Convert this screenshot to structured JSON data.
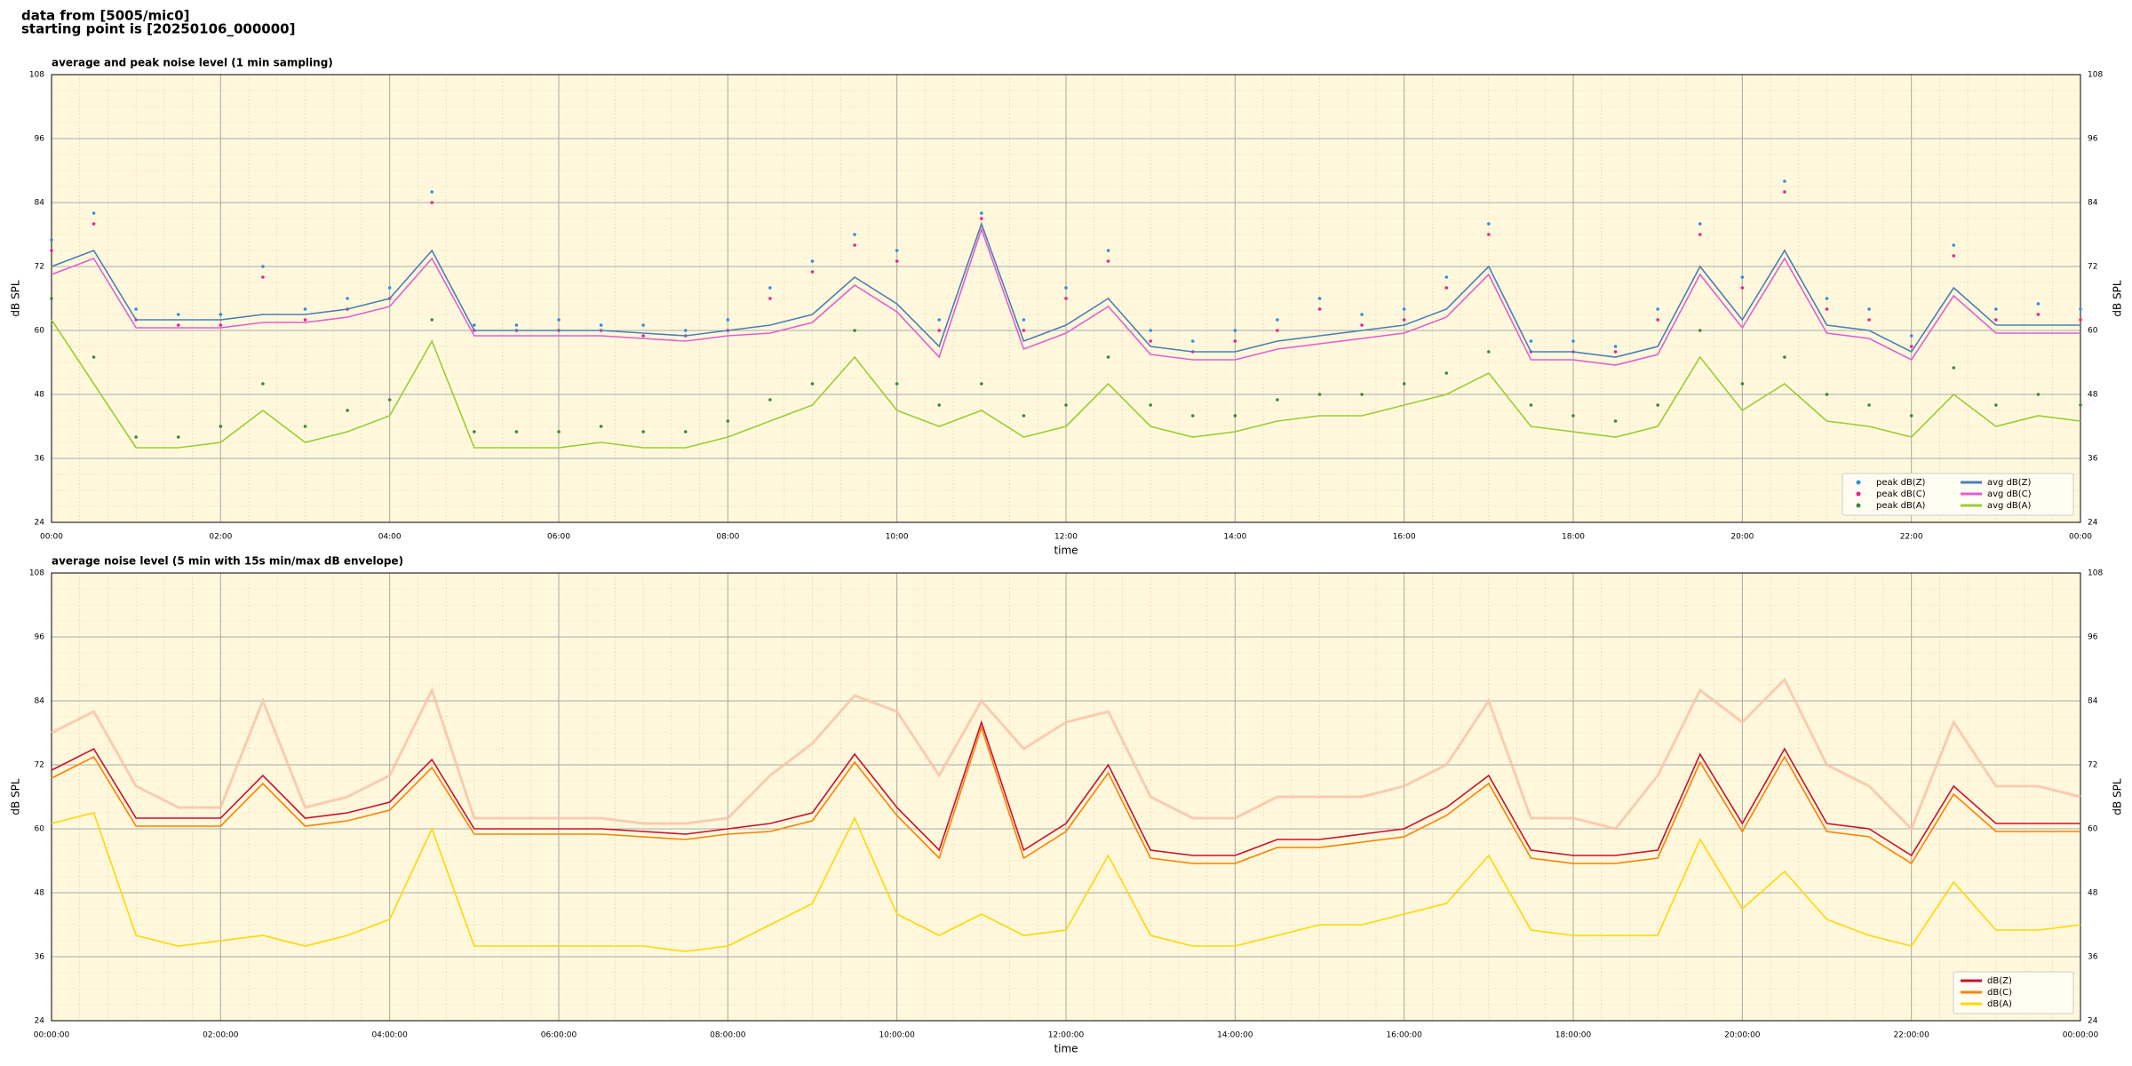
{
  "header": {
    "line1": "data from [5005/mic0]",
    "line2": "starting point is [20250106_000000]"
  },
  "chart_data": [
    {
      "type": "line",
      "title": "average and peak noise level (1 min sampling)",
      "xlabel": "time",
      "ylabel": "dB SPL",
      "x": [
        0,
        0.5,
        1,
        1.5,
        2,
        2.5,
        3,
        3.5,
        4,
        4.5,
        5,
        5.5,
        6,
        6.5,
        7,
        7.5,
        8,
        8.5,
        9,
        9.5,
        10,
        10.5,
        11,
        11.5,
        12,
        12.5,
        13,
        13.5,
        14,
        14.5,
        15,
        15.5,
        16,
        16.5,
        17,
        17.5,
        18,
        18.5,
        19,
        19.5,
        20,
        20.5,
        21,
        21.5,
        22,
        22.5,
        23,
        23.5,
        24
      ],
      "xlim": [
        0,
        24
      ],
      "xticks": [
        {
          "value": 0,
          "label": "00:00"
        },
        {
          "value": 2,
          "label": "02:00"
        },
        {
          "value": 4,
          "label": "04:00"
        },
        {
          "value": 6,
          "label": "06:00"
        },
        {
          "value": 8,
          "label": "08:00"
        },
        {
          "value": 10,
          "label": "10:00"
        },
        {
          "value": 12,
          "label": "12:00"
        },
        {
          "value": 14,
          "label": "14:00"
        },
        {
          "value": 16,
          "label": "16:00"
        },
        {
          "value": 18,
          "label": "18:00"
        },
        {
          "value": 20,
          "label": "20:00"
        },
        {
          "value": 22,
          "label": "22:00"
        },
        {
          "value": 24,
          "label": "00:00"
        }
      ],
      "ylim": [
        24,
        108
      ],
      "yticks": [
        24,
        36,
        48,
        60,
        72,
        84,
        96,
        108
      ],
      "grid": true,
      "legend": "lower right",
      "legend_columns": 2,
      "series": [
        {
          "name": "peak dB(Z)",
          "style": "dots",
          "color": "#2f8fe0",
          "values": [
            77,
            82,
            64,
            63,
            63,
            72,
            64,
            66,
            68,
            86,
            61,
            61,
            62,
            61,
            61,
            60,
            62,
            68,
            73,
            78,
            75,
            62,
            82,
            62,
            68,
            75,
            60,
            58,
            60,
            62,
            66,
            63,
            64,
            70,
            80,
            58,
            58,
            57,
            64,
            80,
            70,
            88,
            66,
            64,
            59,
            76,
            64,
            65,
            64
          ]
        },
        {
          "name": "peak dB(C)",
          "style": "dots",
          "color": "#f0208c",
          "values": [
            75,
            80,
            62,
            61,
            61,
            70,
            62,
            64,
            66,
            84,
            60,
            60,
            60,
            60,
            59,
            59,
            60,
            66,
            71,
            76,
            73,
            60,
            81,
            60,
            66,
            73,
            58,
            56,
            58,
            60,
            64,
            61,
            62,
            68,
            78,
            56,
            56,
            56,
            62,
            78,
            68,
            86,
            64,
            62,
            57,
            74,
            62,
            63,
            62
          ]
        },
        {
          "name": "peak dB(A)",
          "style": "dots",
          "color": "#3a8a3a",
          "values": [
            66,
            55,
            40,
            40,
            42,
            50,
            42,
            45,
            47,
            62,
            41,
            41,
            41,
            42,
            41,
            41,
            43,
            47,
            50,
            60,
            50,
            46,
            50,
            44,
            46,
            55,
            46,
            44,
            44,
            47,
            48,
            48,
            50,
            52,
            56,
            46,
            44,
            43,
            46,
            60,
            50,
            55,
            48,
            46,
            44,
            53,
            46,
            48,
            46
          ]
        },
        {
          "name": "avg dB(Z)",
          "style": "line",
          "color": "#4a7fb5",
          "values": [
            72,
            75,
            62,
            62,
            62,
            63,
            63,
            64,
            66,
            75,
            60,
            60,
            60,
            60,
            59.5,
            59,
            60,
            61,
            63,
            70,
            65,
            57,
            80,
            58,
            61,
            66,
            57,
            56,
            56,
            58,
            59,
            60,
            61,
            64,
            72,
            56,
            56,
            55,
            57,
            72,
            62,
            75,
            61,
            60,
            56,
            68,
            61,
            61,
            61
          ]
        },
        {
          "name": "avg dB(C)",
          "style": "line",
          "color": "#e060d0",
          "values": [
            70.5,
            73.5,
            60.5,
            60.5,
            60.5,
            61.5,
            61.5,
            62.5,
            64.5,
            73.5,
            59,
            59,
            59,
            59,
            58.5,
            58,
            59,
            59.5,
            61.5,
            68.5,
            63.5,
            55,
            79,
            56.5,
            59.5,
            64.5,
            55.5,
            54.5,
            54.5,
            56.5,
            57.5,
            58.5,
            59.5,
            62.5,
            70.5,
            54.5,
            54.5,
            53.5,
            55.5,
            70.5,
            60.5,
            73.5,
            59.5,
            58.5,
            54.5,
            66.5,
            59.5,
            59.5,
            59.5
          ]
        },
        {
          "name": "avg dB(A)",
          "style": "line",
          "color": "#9acd32",
          "values": [
            62,
            50,
            38,
            38,
            39,
            45,
            39,
            41,
            44,
            58,
            38,
            38,
            38,
            39,
            38,
            38,
            40,
            43,
            46,
            55,
            45,
            42,
            45,
            40,
            42,
            50,
            42,
            40,
            41,
            43,
            44,
            44,
            46,
            48,
            52,
            42,
            41,
            40,
            42,
            55,
            45,
            50,
            43,
            42,
            40,
            48,
            42,
            44,
            43
          ]
        }
      ]
    },
    {
      "type": "line",
      "title": "average noise level (5 min with 15s min/max dB envelope)",
      "xlabel": "time",
      "ylabel": "dB SPL",
      "x": [
        0,
        0.5,
        1,
        1.5,
        2,
        2.5,
        3,
        3.5,
        4,
        4.5,
        5,
        5.5,
        6,
        6.5,
        7,
        7.5,
        8,
        8.5,
        9,
        9.5,
        10,
        10.5,
        11,
        11.5,
        12,
        12.5,
        13,
        13.5,
        14,
        14.5,
        15,
        15.5,
        16,
        16.5,
        17,
        17.5,
        18,
        18.5,
        19,
        19.5,
        20,
        20.5,
        21,
        21.5,
        22,
        22.5,
        23,
        23.5,
        24
      ],
      "xlim": [
        0,
        24
      ],
      "xticks": [
        {
          "value": 0,
          "label": "00:00:00"
        },
        {
          "value": 2,
          "label": "02:00:00"
        },
        {
          "value": 4,
          "label": "04:00:00"
        },
        {
          "value": 6,
          "label": "06:00:00"
        },
        {
          "value": 8,
          "label": "08:00:00"
        },
        {
          "value": 10,
          "label": "10:00:00"
        },
        {
          "value": 12,
          "label": "12:00:00"
        },
        {
          "value": 14,
          "label": "14:00:00"
        },
        {
          "value": 16,
          "label": "16:00:00"
        },
        {
          "value": 18,
          "label": "18:00:00"
        },
        {
          "value": 20,
          "label": "20:00:00"
        },
        {
          "value": 22,
          "label": "22:00:00"
        },
        {
          "value": 24,
          "label": "00:00:00"
        }
      ],
      "ylim": [
        24,
        108
      ],
      "yticks": [
        24,
        36,
        48,
        60,
        72,
        84,
        96,
        108
      ],
      "grid": true,
      "legend": "lower right",
      "legend_columns": 1,
      "envelope": {
        "color": "#f7c0a8",
        "values": [
          78,
          82,
          68,
          64,
          64,
          84,
          64,
          66,
          70,
          86,
          62,
          62,
          62,
          62,
          61,
          61,
          62,
          70,
          76,
          85,
          82,
          70,
          84,
          75,
          80,
          82,
          66,
          62,
          62,
          66,
          66,
          66,
          68,
          72,
          84,
          62,
          62,
          60,
          70,
          86,
          80,
          88,
          72,
          68,
          60,
          80,
          68,
          68,
          66
        ]
      },
      "series": [
        {
          "name": "dB(Z)",
          "style": "line",
          "color": "#c8102e",
          "values": [
            71,
            75,
            62,
            62,
            62,
            70,
            62,
            63,
            65,
            73,
            60,
            60,
            60,
            60,
            59.5,
            59,
            60,
            61,
            63,
            74,
            64,
            56,
            80,
            56,
            61,
            72,
            56,
            55,
            55,
            58,
            58,
            59,
            60,
            64,
            70,
            56,
            55,
            55,
            56,
            74,
            61,
            75,
            61,
            60,
            55,
            68,
            61,
            61,
            61
          ]
        },
        {
          "name": "dB(C)",
          "style": "line",
          "color": "#ff8000",
          "values": [
            69.5,
            73.5,
            60.5,
            60.5,
            60.5,
            68.5,
            60.5,
            61.5,
            63.5,
            71.5,
            59,
            59,
            59,
            59,
            58.5,
            58,
            59,
            59.5,
            61.5,
            72.5,
            62.5,
            54.5,
            79,
            54.5,
            59.5,
            70.5,
            54.5,
            53.5,
            53.5,
            56.5,
            56.5,
            57.5,
            58.5,
            62.5,
            68.5,
            54.5,
            53.5,
            53.5,
            54.5,
            72.5,
            59.5,
            73.5,
            59.5,
            58.5,
            53.5,
            66.5,
            59.5,
            59.5,
            59.5
          ]
        },
        {
          "name": "dB(A)",
          "style": "line",
          "color": "#ffd700",
          "values": [
            61,
            63,
            40,
            38,
            39,
            40,
            38,
            40,
            43,
            60,
            38,
            38,
            38,
            38,
            38,
            37,
            38,
            42,
            46,
            62,
            44,
            40,
            44,
            40,
            41,
            55,
            40,
            38,
            38,
            40,
            42,
            42,
            44,
            46,
            55,
            41,
            40,
            40,
            40,
            58,
            45,
            52,
            43,
            40,
            38,
            50,
            41,
            41,
            42
          ]
        }
      ]
    }
  ]
}
